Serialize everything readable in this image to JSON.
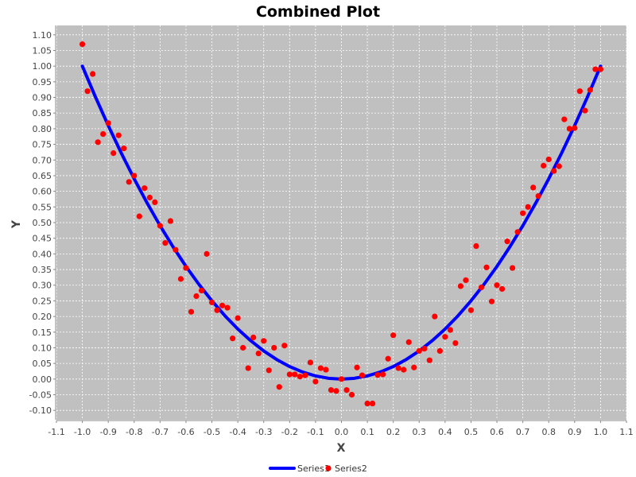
{
  "chart_data": {
    "type": "scatter",
    "title": "Combined Plot",
    "xlabel": "X",
    "ylabel": "Y",
    "xlim": [
      -1.1,
      1.1
    ],
    "ylim": [
      -0.13,
      1.13
    ],
    "x_ticks": [
      "-1.1",
      "-1.0",
      "-0.9",
      "-0.8",
      "-0.7",
      "-0.6",
      "-0.5",
      "-0.4",
      "-0.3",
      "-0.2",
      "-0.1",
      "0.0",
      "0.1",
      "0.2",
      "0.3",
      "0.4",
      "0.5",
      "0.6",
      "0.7",
      "0.8",
      "0.9",
      "1.0",
      "1.1"
    ],
    "y_ticks": [
      "-0.10",
      "-0.05",
      "0.00",
      "0.05",
      "0.10",
      "0.15",
      "0.20",
      "0.25",
      "0.30",
      "0.35",
      "0.40",
      "0.45",
      "0.50",
      "0.55",
      "0.60",
      "0.65",
      "0.70",
      "0.75",
      "0.80",
      "0.85",
      "0.90",
      "0.95",
      "1.00",
      "1.05",
      "1.10"
    ],
    "grid": true,
    "legend_position": "bottom",
    "background_color": "#c0c0c0",
    "series": [
      {
        "name": "Series1",
        "kind": "line",
        "color": "#0000ff",
        "x": [
          -1.0,
          -0.95,
          -0.9,
          -0.85,
          -0.8,
          -0.75,
          -0.7,
          -0.65,
          -0.6,
          -0.55,
          -0.5,
          -0.45,
          -0.4,
          -0.35,
          -0.3,
          -0.25,
          -0.2,
          -0.15,
          -0.1,
          -0.05,
          0.0,
          0.05,
          0.1,
          0.15,
          0.2,
          0.25,
          0.3,
          0.35,
          0.4,
          0.45,
          0.5,
          0.55,
          0.6,
          0.65,
          0.7,
          0.75,
          0.8,
          0.85,
          0.9,
          0.95,
          1.0
        ],
        "y": [
          1.0,
          0.9025,
          0.81,
          0.7225,
          0.64,
          0.5625,
          0.49,
          0.4225,
          0.36,
          0.3025,
          0.25,
          0.2025,
          0.16,
          0.1225,
          0.09,
          0.0625,
          0.04,
          0.0225,
          0.01,
          0.0025,
          0.0,
          0.0025,
          0.01,
          0.0225,
          0.04,
          0.0625,
          0.09,
          0.1225,
          0.16,
          0.2025,
          0.25,
          0.3025,
          0.36,
          0.4225,
          0.49,
          0.5625,
          0.64,
          0.7225,
          0.81,
          0.9025,
          1.0
        ]
      },
      {
        "name": "Series2",
        "kind": "scatter",
        "color": "#ff0000",
        "x": [
          -1.0,
          -0.98,
          -0.96,
          -0.94,
          -0.92,
          -0.9,
          -0.88,
          -0.86,
          -0.84,
          -0.82,
          -0.8,
          -0.78,
          -0.76,
          -0.74,
          -0.72,
          -0.7,
          -0.68,
          -0.66,
          -0.64,
          -0.62,
          -0.6,
          -0.58,
          -0.56,
          -0.54,
          -0.52,
          -0.5,
          -0.48,
          -0.46,
          -0.44,
          -0.42,
          -0.4,
          -0.38,
          -0.36,
          -0.34,
          -0.32,
          -0.3,
          -0.28,
          -0.26,
          -0.24,
          -0.22,
          -0.2,
          -0.18,
          -0.16,
          -0.14,
          -0.12,
          -0.1,
          -0.08,
          -0.06,
          -0.04,
          -0.02,
          0.0,
          0.02,
          0.04,
          0.06,
          0.08,
          0.1,
          0.12,
          0.14,
          0.16,
          0.18,
          0.2,
          0.22,
          0.24,
          0.26,
          0.28,
          0.3,
          0.32,
          0.34,
          0.36,
          0.38,
          0.4,
          0.42,
          0.44,
          0.46,
          0.48,
          0.5,
          0.52,
          0.54,
          0.56,
          0.58,
          0.6,
          0.62,
          0.64,
          0.66,
          0.68,
          0.7,
          0.72,
          0.74,
          0.76,
          0.78,
          0.8,
          0.82,
          0.84,
          0.86,
          0.88,
          0.9,
          0.92,
          0.94,
          0.96,
          0.98,
          1.0
        ],
        "y": [
          1.07,
          0.92,
          0.975,
          0.757,
          0.783,
          0.818,
          0.722,
          0.779,
          0.737,
          0.63,
          0.65,
          0.52,
          0.61,
          0.58,
          0.565,
          0.49,
          0.435,
          0.505,
          0.413,
          0.32,
          0.355,
          0.215,
          0.265,
          0.283,
          0.4,
          0.245,
          0.22,
          0.235,
          0.228,
          0.13,
          0.195,
          0.1,
          0.035,
          0.133,
          0.082,
          0.122,
          0.028,
          0.1,
          -0.025,
          0.107,
          0.015,
          0.015,
          0.008,
          0.012,
          0.053,
          -0.008,
          0.035,
          0.03,
          -0.035,
          -0.038,
          0.0,
          -0.035,
          -0.05,
          0.037,
          0.012,
          -0.078,
          -0.078,
          0.013,
          0.015,
          0.065,
          0.14,
          0.035,
          0.03,
          0.118,
          0.037,
          0.09,
          0.097,
          0.06,
          0.2,
          0.09,
          0.135,
          0.157,
          0.115,
          0.297,
          0.316,
          0.22,
          0.425,
          0.293,
          0.357,
          0.248,
          0.3,
          0.288,
          0.44,
          0.355,
          0.47,
          0.53,
          0.55,
          0.612,
          0.585,
          0.682,
          0.702,
          0.665,
          0.68,
          0.83,
          0.8,
          0.802,
          0.92,
          0.858,
          0.924,
          0.99,
          0.99
        ]
      }
    ]
  }
}
